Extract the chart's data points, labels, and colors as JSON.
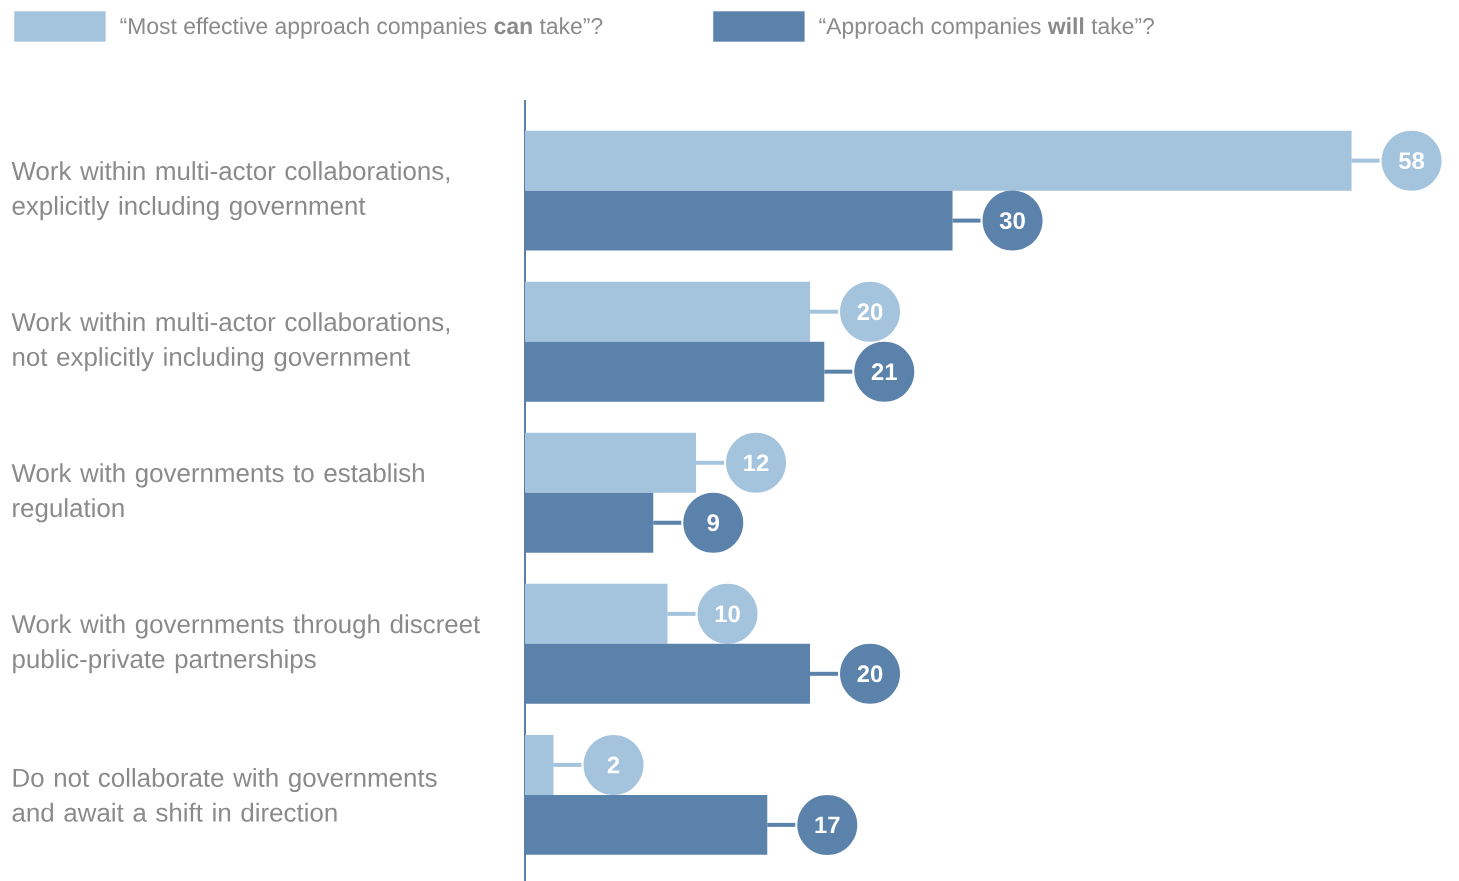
{
  "chart_data": {
    "type": "bar",
    "orientation": "horizontal",
    "categories": [
      "Work within multi-actor collaborations, explicitly including government",
      "Work within multi-actor collaborations, not explicitly including government",
      "Work with governments to establish regulation",
      "Work with governments through discreet public-private partnerships",
      "Do not collaborate with governments and await a shift in direction"
    ],
    "series": [
      {
        "name": "“Most effective approach companies **can** take”?",
        "color": "#a4c3dd",
        "values": [
          58,
          20,
          12,
          10,
          2
        ]
      },
      {
        "name": "“Approach companies **will** take”?",
        "color": "#5b82ab",
        "values": [
          30,
          21,
          9,
          20,
          17
        ]
      }
    ],
    "data_labels": true,
    "legend": "top left"
  }
}
